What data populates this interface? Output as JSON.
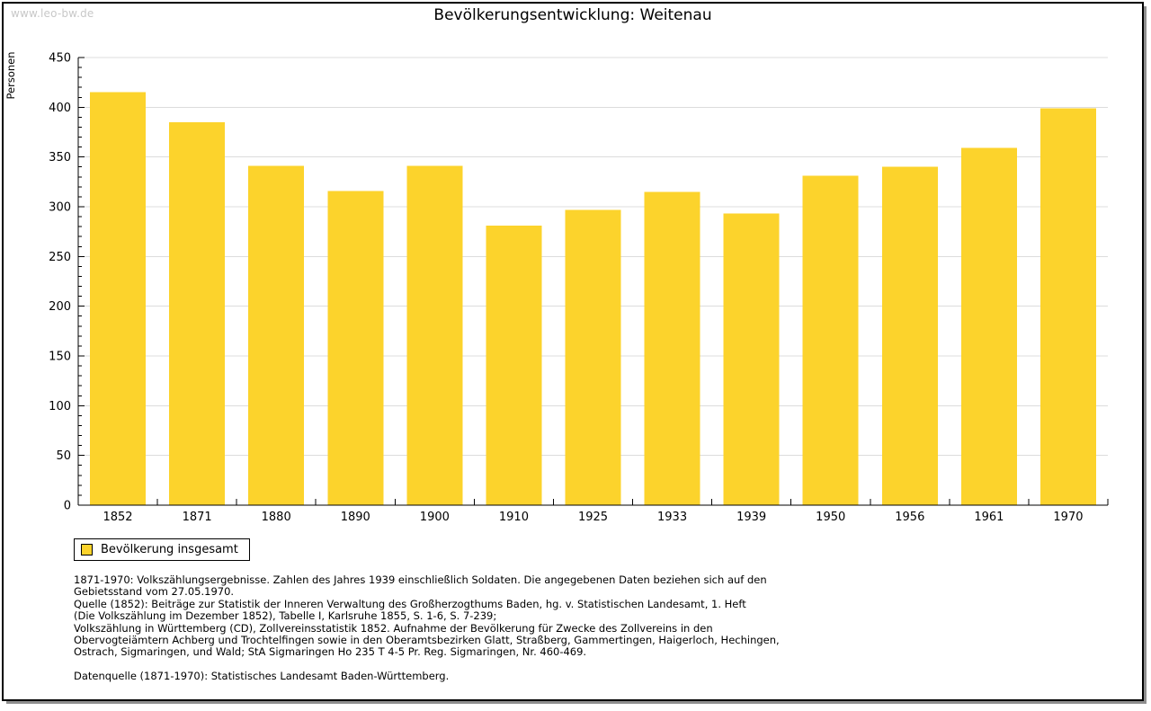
{
  "watermark": "www.leo-bw.de",
  "title": "Bevölkerungsentwicklung: Weitenau",
  "legend": {
    "label": "Bevölkerung insgesamt",
    "swatch_color": "#fcd32c"
  },
  "chart_data": {
    "type": "bar",
    "title": "Bevölkerungsentwicklung: Weitenau",
    "xlabel": "",
    "ylabel": "Personen",
    "categories": [
      "1852",
      "1871",
      "1880",
      "1890",
      "1900",
      "1910",
      "1925",
      "1933",
      "1939",
      "1950",
      "1956",
      "1961",
      "1970"
    ],
    "series": [
      {
        "name": "Bevölkerung insgesamt",
        "values": [
          415,
          385,
          341,
          316,
          341,
          281,
          297,
          315,
          293,
          331,
          340,
          359,
          399
        ]
      }
    ],
    "ylim": [
      0,
      450
    ],
    "ytick_step": 50,
    "minor_tick_step": 10,
    "grid": true,
    "legend_position": "bottom-left",
    "bar_color": "#fcd32c"
  },
  "colors": {
    "bar": "#fcd32c",
    "grid": "#dcdcdc",
    "axis": "#000000",
    "watermark": "#c8c8c8",
    "frame_border": "#000000",
    "frame_shadow": "#8f8f8f",
    "background": "#ffffff"
  },
  "footnotes": {
    "lines": [
      "1871-1970: Volkszählungsergebnisse. Zahlen des Jahres 1939 einschließlich Soldaten. Die angegebenen Daten beziehen sich auf den",
      "Gebietsstand vom 27.05.1970.",
      "Quelle (1852): Beiträge zur Statistik der Inneren Verwaltung des Großherzogthums Baden, hg. v. Statistischen Landesamt, 1. Heft",
      "(Die Volkszählung im Dezember 1852), Tabelle I, Karlsruhe 1855, S. 1-6, S. 7-239;",
      "Volkszählung in Württemberg (CD), Zollvereinsstatistik 1852. Aufnahme der Bevölkerung für Zwecke des Zollvereins in den",
      "Obervogteiämtern Achberg und Trochtelfingen sowie in den Oberamtsbezirken Glatt, Straßberg, Gammertingen, Haigerloch, Hechingen,",
      "Ostrach, Sigmaringen, und Wald; StA Sigmaringen Ho 235 T 4-5 Pr. Reg. Sigmaringen, Nr. 460-469."
    ],
    "datasource": "Datenquelle (1871-1970): Statistisches Landesamt Baden-Württemberg."
  }
}
